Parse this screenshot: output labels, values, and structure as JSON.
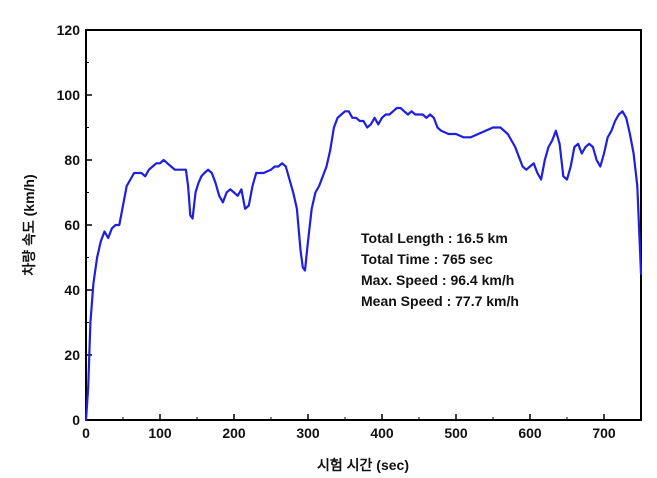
{
  "chart_data": {
    "type": "line",
    "title": "",
    "xlabel": "시험 시간 (sec)",
    "ylabel": "차량 속도 (km/h)",
    "xlim": [
      0,
      750
    ],
    "ylim": [
      0,
      120
    ],
    "x_ticks": [
      0,
      100,
      200,
      300,
      400,
      500,
      600,
      700
    ],
    "y_ticks": [
      0,
      20,
      40,
      60,
      80,
      100,
      120
    ],
    "x_tick_labels": [
      "0",
      "100",
      "200",
      "300",
      "400",
      "500",
      "600",
      "700"
    ],
    "y_tick_labels": [
      "0",
      "20",
      "40",
      "60",
      "80",
      "100",
      "120"
    ],
    "grid": false,
    "series": [
      {
        "color": "#1f1fe0",
        "x": [
          0,
          3,
          6,
          10,
          15,
          20,
          25,
          30,
          35,
          40,
          45,
          50,
          55,
          60,
          65,
          70,
          75,
          80,
          85,
          90,
          95,
          100,
          105,
          110,
          115,
          120,
          125,
          130,
          135,
          138,
          141,
          144,
          148,
          152,
          156,
          160,
          165,
          170,
          175,
          180,
          185,
          190,
          195,
          200,
          205,
          210,
          215,
          220,
          225,
          230,
          240,
          250,
          255,
          260,
          265,
          270,
          275,
          280,
          285,
          290,
          293,
          296,
          300,
          305,
          310,
          315,
          320,
          325,
          330,
          335,
          340,
          345,
          350,
          355,
          360,
          365,
          370,
          375,
          380,
          385,
          390,
          395,
          400,
          405,
          410,
          415,
          420,
          425,
          430,
          435,
          440,
          445,
          450,
          455,
          460,
          465,
          470,
          475,
          480,
          490,
          500,
          510,
          520,
          530,
          540,
          550,
          560,
          570,
          580,
          585,
          590,
          595,
          600,
          605,
          610,
          615,
          620,
          625,
          630,
          635,
          640,
          645,
          650,
          655,
          660,
          665,
          670,
          675,
          680,
          685,
          690,
          695,
          700,
          705,
          710,
          715,
          720,
          725,
          730,
          735,
          740,
          745,
          750
        ],
        "values": [
          0,
          10,
          30,
          42,
          50,
          55,
          58,
          56,
          59,
          60,
          60,
          66,
          72,
          74,
          76,
          76,
          76,
          75,
          77,
          78,
          79,
          79,
          80,
          79,
          78,
          77,
          77,
          77,
          77,
          72,
          63,
          62,
          70,
          73,
          75,
          76,
          77,
          76,
          73,
          69,
          67,
          70,
          71,
          70,
          69,
          71,
          65,
          66,
          72,
          76,
          76,
          77,
          78,
          78,
          79,
          78,
          74,
          70,
          65,
          52,
          47,
          46,
          55,
          65,
          70,
          72,
          75,
          78,
          83,
          90,
          93,
          94,
          95,
          95,
          93,
          93,
          92,
          92,
          90,
          91,
          93,
          91,
          93,
          94,
          94,
          95,
          96,
          96,
          95,
          94,
          95,
          94,
          94,
          94,
          93,
          94,
          93,
          90,
          89,
          88,
          88,
          87,
          87,
          88,
          89,
          90,
          90,
          88,
          84,
          81,
          78,
          77,
          78,
          79,
          76,
          74,
          80,
          84,
          86,
          89,
          85,
          75,
          74,
          78,
          84,
          85,
          82,
          84,
          85,
          84,
          80,
          78,
          82,
          87,
          89,
          92,
          94,
          95,
          93,
          88,
          82,
          72,
          45
        ]
      }
    ],
    "annotations": [
      "Total Length : 16.5 km",
      "Total Time : 765 sec",
      "Max. Speed : 96.4 km/h",
      "Mean Speed : 77.7 km/h"
    ]
  }
}
